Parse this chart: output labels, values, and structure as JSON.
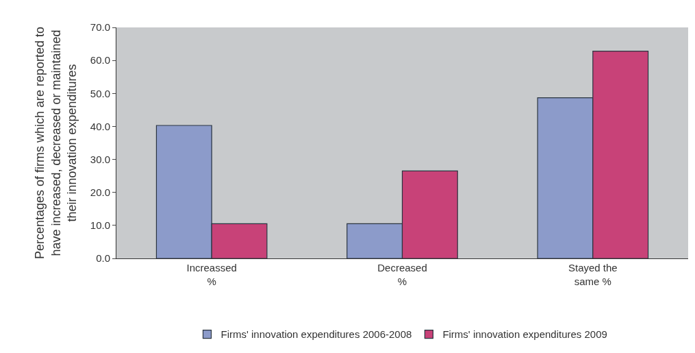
{
  "chart_data": {
    "type": "bar",
    "ylabel": "Percentages of firms which are reported to\nhave increased, decreased or maintained\ntheir innovation expenditures",
    "categories": [
      "Increassed\n%",
      "Decreased\n%",
      "Stayed the\nsame %"
    ],
    "series": [
      {
        "name": "Firms' innovation expenditures 2006-2008",
        "color": "#8c9bca",
        "values": [
          40.3,
          10.5,
          48.7
        ]
      },
      {
        "name": "Firms' innovation expenditures 2009",
        "color": "#c84278",
        "values": [
          10.5,
          26.5,
          62.8
        ]
      }
    ],
    "ylim": [
      0,
      70
    ],
    "yticks": [
      {
        "value": 0,
        "label": "0.0"
      },
      {
        "value": 10,
        "label": "10.0"
      },
      {
        "value": 20,
        "label": "20.0"
      },
      {
        "value": 30,
        "label": "30.0"
      },
      {
        "value": 40,
        "label": "40.0"
      },
      {
        "value": 50,
        "label": "50.0"
      },
      {
        "value": 60,
        "label": "60.0"
      },
      {
        "value": 70,
        "label": "70.0"
      }
    ],
    "grid": false,
    "legend": "bottom"
  }
}
